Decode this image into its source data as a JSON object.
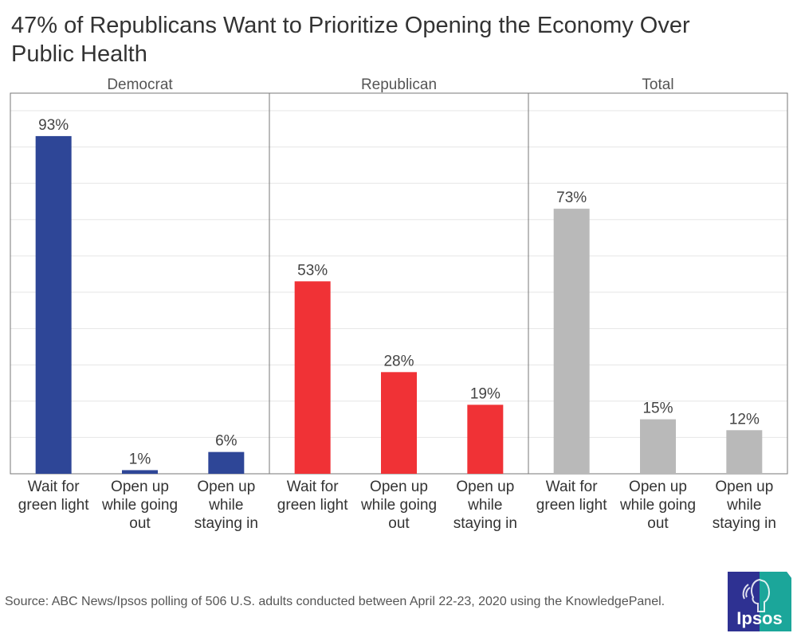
{
  "chart_data": {
    "type": "bar",
    "title": "47% of Republicans Want to Prioritize Opening the Economy Over Public Health",
    "categories": [
      "Wait for green light",
      "Open up while going out",
      "Open up while staying in"
    ],
    "category_lines": [
      [
        "Wait for",
        "green light"
      ],
      [
        "Open up",
        "while going",
        "out"
      ],
      [
        "Open up",
        "while",
        "staying in"
      ]
    ],
    "ylim": [
      0,
      100
    ],
    "grid": true,
    "series": [
      {
        "name": "Democrat",
        "values": [
          93,
          1,
          6
        ],
        "labels": [
          "93%",
          "1%",
          "6%"
        ],
        "color": "#2E4697"
      },
      {
        "name": "Republican",
        "values": [
          53,
          28,
          19
        ],
        "labels": [
          "53%",
          "28%",
          "19%"
        ],
        "color": "#F03236"
      },
      {
        "name": "Total",
        "values": [
          73,
          15,
          12
        ],
        "labels": [
          "73%",
          "15%",
          "12%"
        ],
        "color": "#B9B9B9"
      }
    ]
  },
  "source": "Source: ABC News/Ipsos polling of  506 U.S. adults conducted between April 22-23, 2020 using the KnowledgePanel.",
  "logo": {
    "text": "Ipsos",
    "color_left": "#2E3192",
    "color_right": "#1BA69A"
  }
}
